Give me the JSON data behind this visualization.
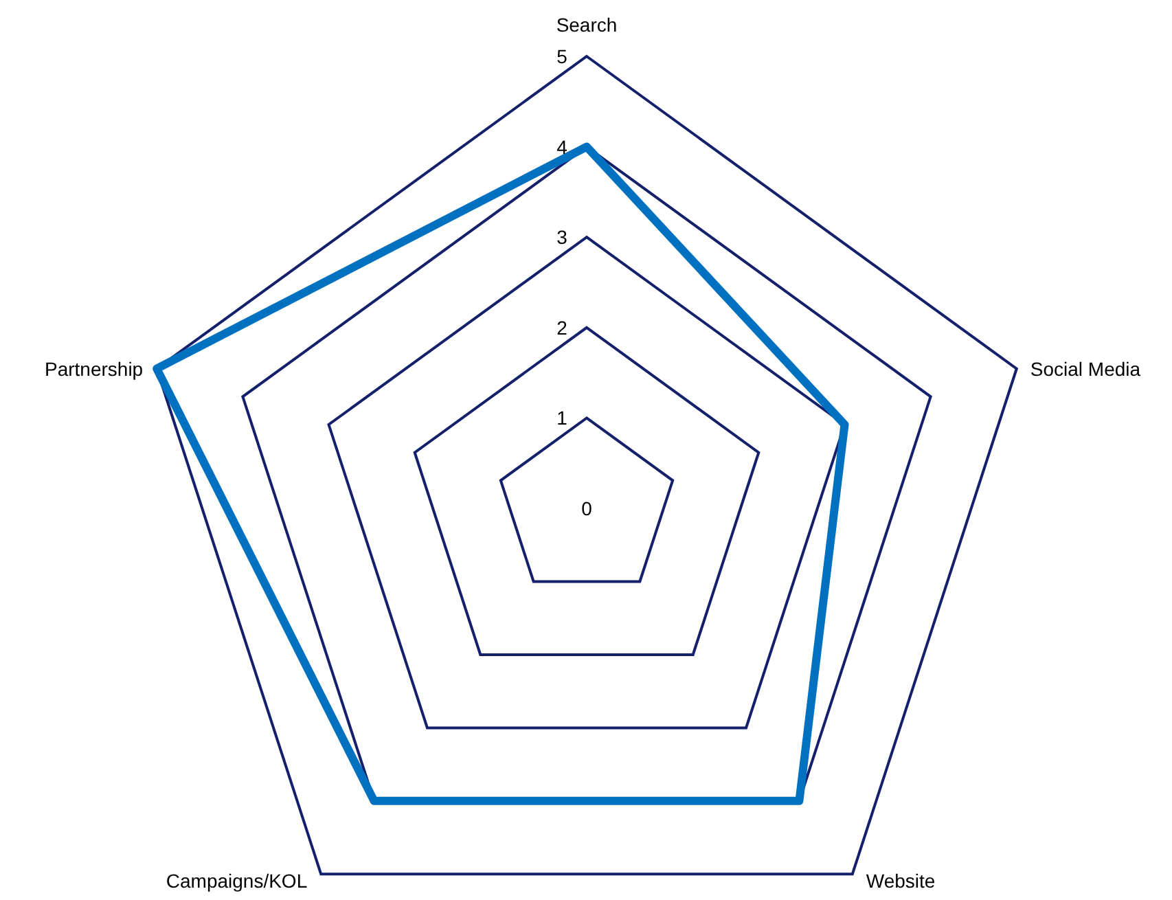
{
  "chart_data": {
    "type": "radar",
    "categories": [
      "Search",
      "Social Media",
      "Website",
      "Campaigns/KOL",
      "Partnership"
    ],
    "series": [
      {
        "color": "#0070c0",
        "values": [
          4,
          3,
          4,
          4,
          5
        ]
      }
    ],
    "ylim": [
      0,
      5
    ],
    "yticks": [
      0,
      1,
      2,
      3,
      4,
      5
    ],
    "grid": true,
    "marker": "none"
  }
}
